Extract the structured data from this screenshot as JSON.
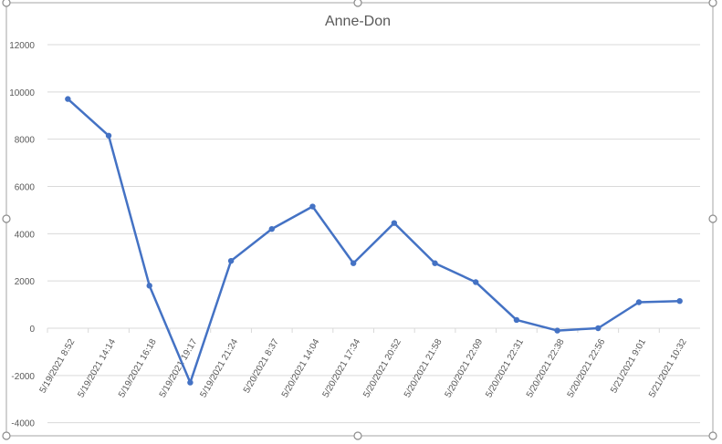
{
  "chart_data": {
    "type": "line",
    "title": "Anne-Don",
    "xlabel": "",
    "ylabel": "",
    "ylim": [
      -4000,
      12000
    ],
    "yticks": [
      -4000,
      -2000,
      0,
      2000,
      4000,
      6000,
      8000,
      10000,
      12000
    ],
    "grid": true,
    "legend": "none",
    "categories": [
      "5/19/2021 8:52",
      "5/19/2021 14:14",
      "5/19/2021 16:18",
      "5/19/2021 19:17",
      "5/19/2021 21:24",
      "5/20/2021 8:37",
      "5/20/2021 14:04",
      "5/20/2021 17:34",
      "5/20/2021 20:52",
      "5/20/2021 21:58",
      "5/20/2021 22:09",
      "5/20/2021 22:31",
      "5/20/2021 22:38",
      "5/20/2021 22:56",
      "5/21/2021 9:01",
      "5/21/2021 10:32"
    ],
    "series": [
      {
        "values": [
          9700,
          8150,
          1800,
          -2300,
          2850,
          4200,
          5150,
          2750,
          4450,
          2750,
          1950,
          350,
          -100,
          0,
          1100,
          1150
        ],
        "color": "#4472c4"
      }
    ]
  }
}
